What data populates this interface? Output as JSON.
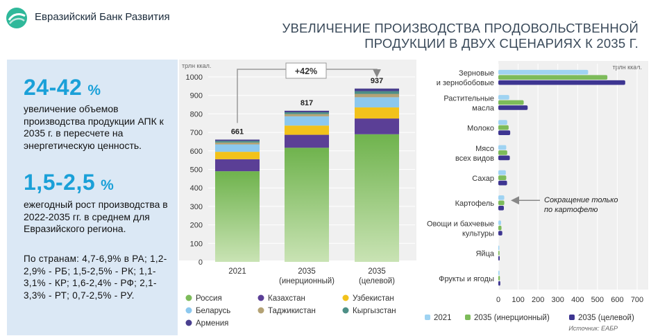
{
  "header": {
    "org_name": "Евразийский Банк Развития",
    "title_line1": "УВЕЛИЧЕНИЕ ПРОИЗВОДСТВА ПРОДОВОЛЬСТВЕННОЙ",
    "title_line2": "ПРОДУКЦИИ В ДВУХ СЦЕНАРИЯХ К 2035 Г."
  },
  "panel": {
    "stat1_value": "24-42",
    "stat1_unit": "%",
    "stat1_text": "увеличение объемов производства продукции АПК к 2035 г. в пересчете на энергетическую ценность.",
    "stat2_value": "1,5-2,5",
    "stat2_unit": "%",
    "stat2_text": "ежегодный рост производства в 2022-2035 гг. в среднем для Евразийского региона.",
    "stat2_countries": "По странам: 4,7-6,9% в РА; 1,2-2,9% - РБ; 1,5-2,5% - РК; 1,1-3,1% - КР; 1,6-2,4% - РФ; 2,1-3,3% - РТ; 0,7-2,5% - РУ."
  },
  "colors": {
    "russia": "#7dbb5a",
    "kazakhstan": "#5b3f96",
    "uzbekistan": "#f2c21b",
    "belarus": "#8cc8ee",
    "tajikistan": "#b4a275",
    "kyrgyzstan": "#4d8f86",
    "armenia": "#4a3f8f",
    "y2021": "#9fd3f2",
    "y2035i": "#7dbb5a",
    "y2035t": "#3d3591"
  },
  "source": "Источник: ЕАБР",
  "chart_data": [
    {
      "type": "bar",
      "stacked": true,
      "unit_label": "трлн ккал.",
      "categories": [
        "2021",
        "2035\n(инерционный)",
        "2035\n(целевой)"
      ],
      "totals": [
        661,
        817,
        937
      ],
      "growth_annotation": "+42%",
      "ylim": [
        0,
        1000
      ],
      "yticks": [
        0,
        100,
        200,
        300,
        400,
        500,
        600,
        700,
        800,
        900,
        1000
      ],
      "series": [
        {
          "name": "Россия",
          "color_key": "russia",
          "values": [
            490,
            617,
            690
          ]
        },
        {
          "name": "Казахстан",
          "color_key": "kazakhstan",
          "values": [
            65,
            70,
            85
          ]
        },
        {
          "name": "Узбекистан",
          "color_key": "uzbekistan",
          "values": [
            40,
            50,
            60
          ]
        },
        {
          "name": "Беларусь",
          "color_key": "belarus",
          "values": [
            40,
            50,
            55
          ]
        },
        {
          "name": "Таджикистан",
          "color_key": "tajikistan",
          "values": [
            10,
            12,
            18
          ]
        },
        {
          "name": "Кыргызстан",
          "color_key": "kyrgyzstan",
          "values": [
            9,
            10,
            15
          ]
        },
        {
          "name": "Армения",
          "color_key": "armenia",
          "values": [
            7,
            8,
            14
          ]
        }
      ],
      "legend_position": "bottom"
    },
    {
      "type": "bar",
      "orientation": "horizontal",
      "unit_label": "трлн ккал.",
      "categories": [
        "Зерновые\nи зернобобовые",
        "Растительные\nмасла",
        "Молоко",
        "Мясо\nвсех видов",
        "Сахар",
        "Картофель",
        "Овощи и бахчевые\nкультуры",
        "Яйца",
        "Фрукты и ягоды"
      ],
      "xlim": [
        0,
        700
      ],
      "xticks": [
        0,
        100,
        200,
        300,
        400,
        500,
        600,
        700
      ],
      "series": [
        {
          "name": "2021",
          "color_key": "y2021",
          "values": [
            453,
            55,
            45,
            40,
            38,
            30,
            14,
            5,
            6
          ]
        },
        {
          "name": "2035 (инерционный)",
          "color_key": "y2035i",
          "values": [
            550,
            128,
            52,
            45,
            40,
            30,
            16,
            6,
            8
          ]
        },
        {
          "name": "2035 (целевой)",
          "color_key": "y2035t",
          "values": [
            640,
            148,
            60,
            58,
            44,
            28,
            20,
            7,
            10
          ]
        }
      ],
      "annotation": "Сокращение только\nпо картофелю",
      "legend_position": "bottom"
    }
  ]
}
